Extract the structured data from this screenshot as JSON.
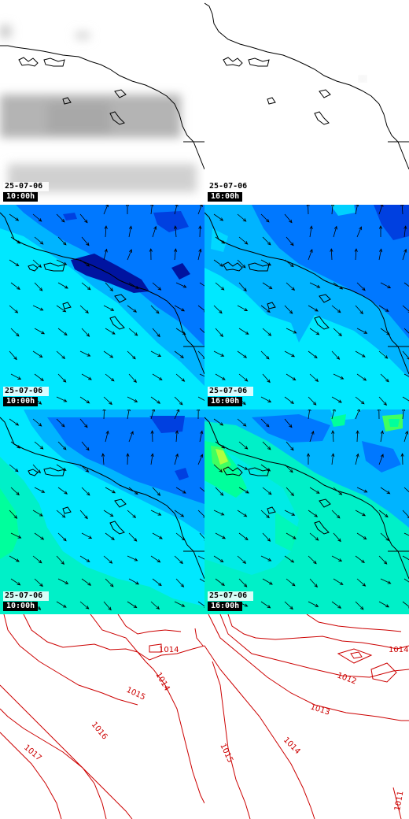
{
  "colors": {
    "coast": "#000000",
    "isobar": "#cc0000",
    "wind_fill": [
      "#00e8ff",
      "#00b4ff",
      "#0078ff",
      "#0040e0",
      "#0014a0"
    ],
    "humidity_fill": [
      "#00e8ff",
      "#00f0c8",
      "#00ff9c",
      "#40ff60",
      "#b0ff40"
    ],
    "cloud": "#b4b4b4"
  },
  "rows": [
    {
      "kind": "cloud",
      "panels": [
        {
          "date": "25-07-06",
          "time": "10:00h"
        },
        {
          "date": "25-07-06",
          "time": "16:00h"
        }
      ]
    },
    {
      "kind": "wind",
      "panels": [
        {
          "date": "25-07-06",
          "time": "10:00h"
        },
        {
          "date": "25-07-06",
          "time": "16:00h"
        }
      ]
    },
    {
      "kind": "humidity",
      "panels": [
        {
          "date": "25-07-06",
          "time": "10:00h"
        },
        {
          "date": "25-07-06",
          "time": "16:00h"
        }
      ]
    },
    {
      "kind": "pressure",
      "panels": [
        {
          "isobars": [
            "1014",
            "1014",
            "1015",
            "1016",
            "1017"
          ]
        },
        {
          "isobars": [
            "1014",
            "1012",
            "1013",
            "1014",
            "1015",
            "1011"
          ]
        }
      ]
    }
  ]
}
